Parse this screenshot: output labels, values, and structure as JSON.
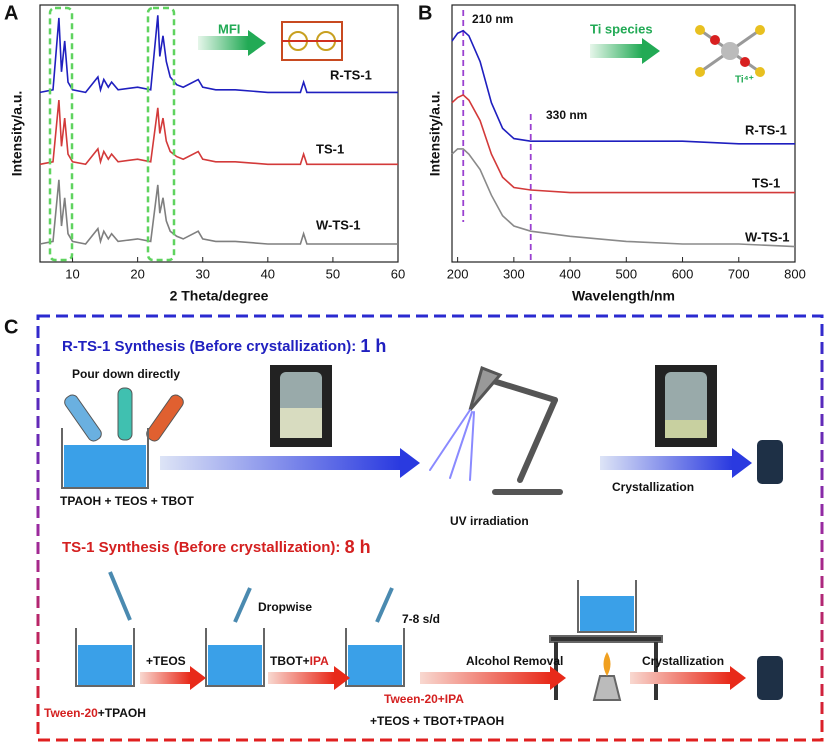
{
  "chart_data": [
    {
      "type": "line",
      "xlabel": "2 Theta/degree",
      "ylabel": "Intensity/a.u.",
      "xlim": [
        5,
        60
      ],
      "ylim": [
        0,
        100
      ],
      "xticks": [
        10,
        20,
        30,
        40,
        50,
        60
      ],
      "x": [
        5,
        7,
        7.9,
        8.3,
        8.8,
        9.3,
        10,
        12,
        13.9,
        14.3,
        14.8,
        15.5,
        16,
        17,
        20,
        22,
        23.1,
        23.4,
        23.9,
        24.4,
        25,
        26,
        27,
        29.3,
        30,
        32,
        35,
        40,
        45,
        45.5,
        46,
        50,
        55,
        60
      ],
      "series": [
        {
          "name": "R-TS-1",
          "color": "#1f1fbf",
          "values": [
            66,
            67,
            95,
            74,
            86,
            70,
            67,
            66,
            72,
            67,
            71,
            68,
            70,
            67,
            68,
            67,
            96,
            80,
            88,
            78,
            72,
            69,
            68,
            71,
            68,
            67,
            67,
            66,
            66,
            70,
            66,
            66,
            66,
            66
          ]
        },
        {
          "name": "TS-1",
          "color": "#d33a3a",
          "values": [
            38,
            39,
            63,
            45,
            56,
            42,
            39,
            38,
            44,
            39,
            43,
            40,
            42,
            39,
            40,
            39,
            60,
            50,
            56,
            47,
            43,
            41,
            40,
            43,
            40,
            39,
            39,
            38,
            38,
            42,
            38,
            38,
            38,
            38
          ]
        },
        {
          "name": "W-TS-1",
          "color": "#7f7f7f",
          "values": [
            7,
            8,
            32,
            14,
            25,
            11,
            8,
            7,
            13,
            8,
            12,
            9,
            11,
            8,
            9,
            8,
            30,
            19,
            25,
            16,
            12,
            10,
            9,
            12,
            9,
            8,
            8,
            7,
            7,
            11,
            7,
            7,
            7,
            7
          ]
        }
      ],
      "annotations": [
        "MFI"
      ]
    },
    {
      "type": "line",
      "xlabel": "Wavelength/nm",
      "ylabel": "Intensity/a.u.",
      "xlim": [
        190,
        800
      ],
      "ylim": [
        0,
        100
      ],
      "xticks": [
        200,
        300,
        400,
        500,
        600,
        700,
        800
      ],
      "x": [
        190,
        200,
        210,
        220,
        240,
        260,
        280,
        300,
        330,
        400,
        500,
        600,
        700,
        800
      ],
      "series": [
        {
          "name": "R-TS-1",
          "color": "#1f1fbf",
          "values": [
            86,
            89,
            90,
            88,
            78,
            62,
            52,
            48,
            47,
            47,
            47,
            47,
            46,
            46
          ]
        },
        {
          "name": "TS-1",
          "color": "#d33a3a",
          "values": [
            62,
            64,
            65,
            63,
            55,
            42,
            33,
            29,
            28,
            27,
            27,
            27,
            27,
            27
          ]
        },
        {
          "name": "W-TS-1",
          "color": "#8a8a8a",
          "values": [
            42,
            44,
            44,
            42,
            36,
            26,
            18,
            14,
            12,
            10,
            8,
            7,
            7,
            6
          ]
        }
      ],
      "markers": [
        210,
        330
      ],
      "annotations": [
        "210 nm",
        "330 nm",
        "Ti species",
        "Ti⁴⁺"
      ]
    }
  ],
  "diagram": {
    "panels": [
      "A",
      "B",
      "C"
    ],
    "r_ts1": {
      "heading": "R-TS-1 Synthesis (Before crystallization):",
      "time": "1 h",
      "pour": "Pour down directly",
      "mixture": "TPAOH + TEOS + TBOT",
      "uv": "UV irradiation",
      "crystallization": "Crystallization"
    },
    "ts1": {
      "heading": "TS-1 Synthesis (Before crystallization):",
      "time": "8 h",
      "dropwise": "Dropwise",
      "rate": "7-8 s/d",
      "teos": "+TEOS",
      "tbot": "TBOT+",
      "ipa": "IPA",
      "removal": "Alcohol Removal",
      "crystallization": "Crystallization",
      "tween": "Tween-20",
      "tpaoh": "+TPAOH",
      "tween_ipa": "Tween-20+IPA",
      "final": "+TEOS + TBOT+TPAOH"
    }
  }
}
